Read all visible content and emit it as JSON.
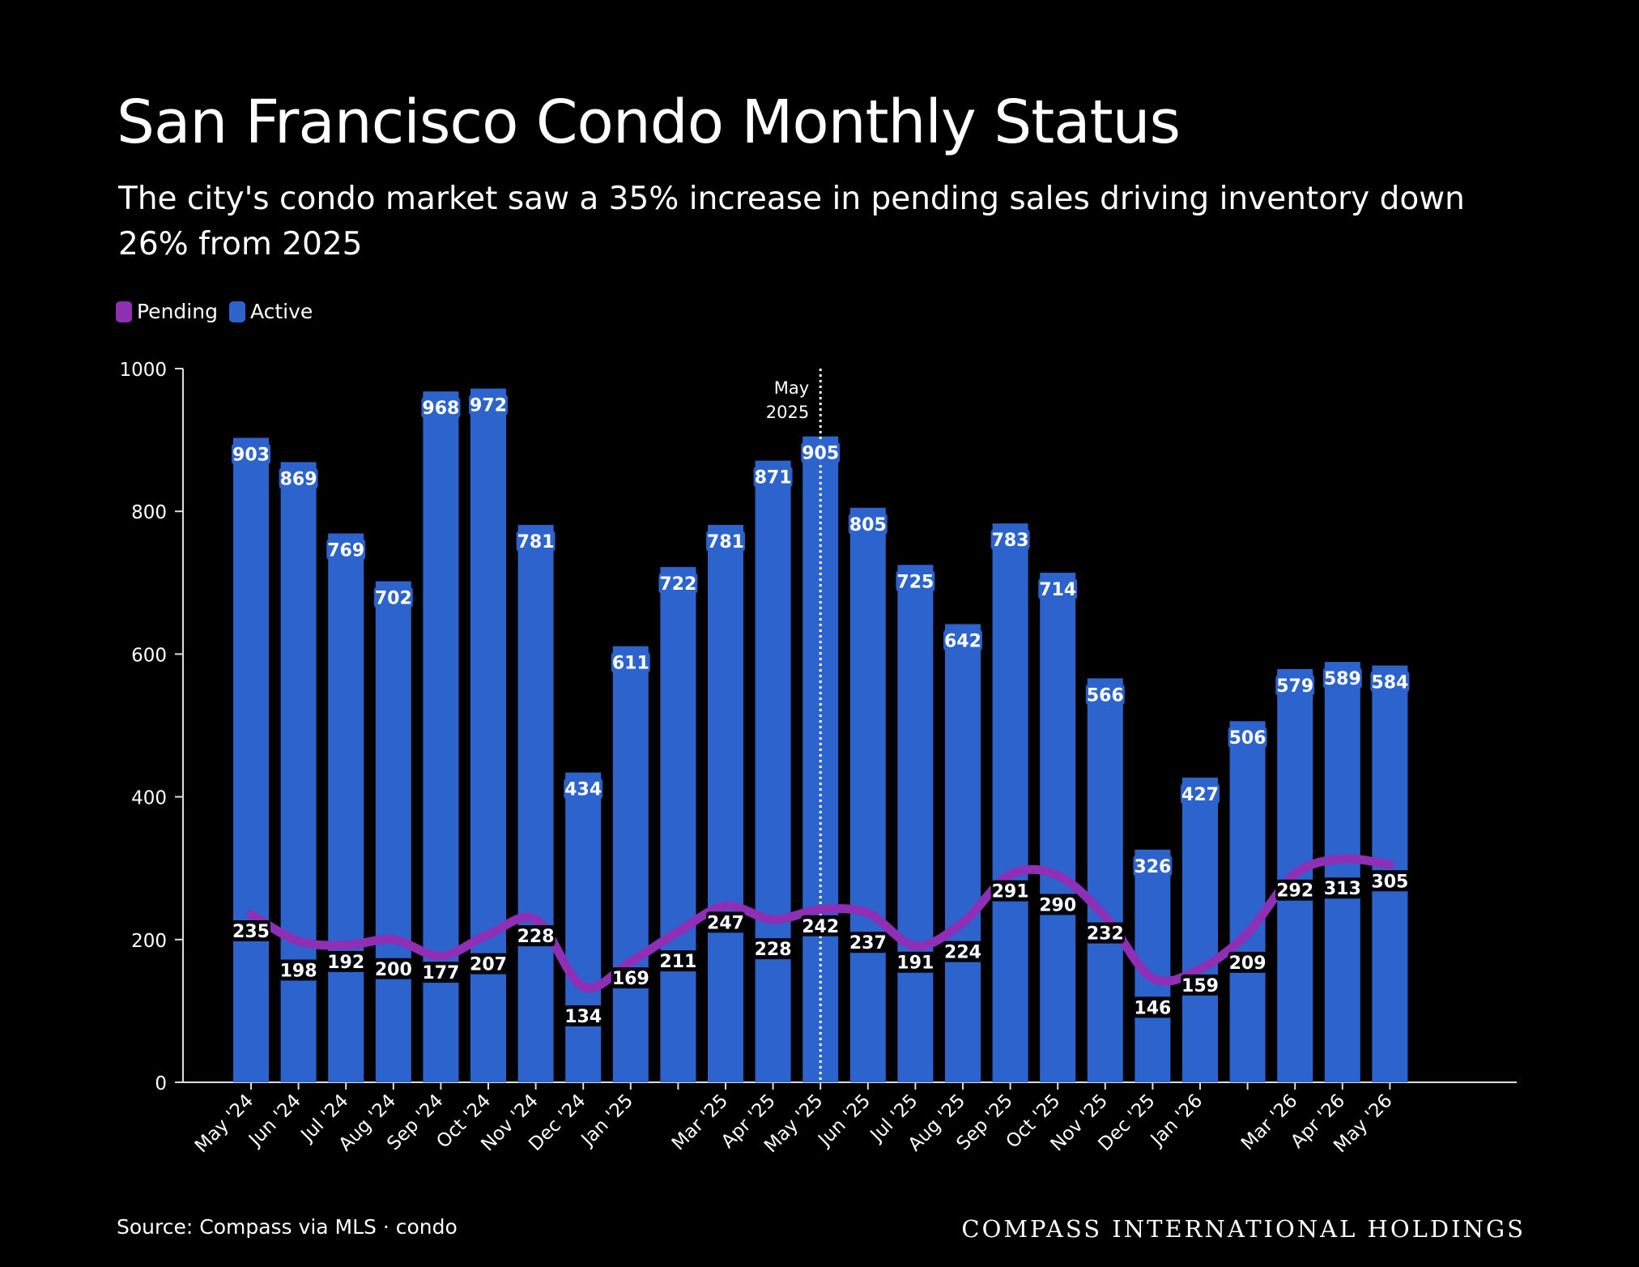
{
  "title": "San Francisco Condo Monthly Status",
  "subtitle": "The city's condo market saw a 35% increase in pending sales driving inventory down 26% from 2025",
  "legend": {
    "pending_label": "Pending",
    "active_label": "Active",
    "pending_color": "#8E2FB5",
    "active_color": "#2D63CC"
  },
  "source": "Source: Compass via MLS · condo",
  "brand": "COMPASS INTERNATIONAL HOLDINGS",
  "chart_data": {
    "type": "bar",
    "categories": [
      "May '24",
      "Jun '24",
      "Jul '24",
      "Aug '24",
      "Sep '24",
      "Oct '24",
      "Nov '24",
      "Dec '24",
      "Jan '25",
      "",
      "Mar '25",
      "Apr '25",
      "May '25",
      "Jun '25",
      "Jul '25",
      "Aug '25",
      "Sep '25",
      "Oct '25",
      "Nov '25",
      "Dec '25",
      "Jan '26",
      "",
      "Mar '26",
      "Apr '26",
      "May '26"
    ],
    "series": [
      {
        "name": "Active",
        "type": "bar",
        "color": "#2D63CC",
        "values": [
          903,
          869,
          769,
          702,
          968,
          972,
          781,
          434,
          611,
          722,
          781,
          871,
          905,
          805,
          725,
          642,
          783,
          714,
          566,
          326,
          427,
          506,
          579,
          589,
          584
        ]
      },
      {
        "name": "Pending",
        "type": "line",
        "color": "#8E2FB5",
        "values": [
          235,
          198,
          192,
          200,
          177,
          207,
          228,
          134,
          169,
          211,
          247,
          228,
          242,
          237,
          191,
          224,
          291,
          290,
          232,
          146,
          159,
          209,
          292,
          313,
          305
        ]
      }
    ],
    "yticks": [
      0,
      200,
      400,
      600,
      800,
      1000
    ],
    "ylim": [
      0,
      1000
    ],
    "grid": false,
    "legend_position": "top-left",
    "annotation": {
      "category": "May '25",
      "label_line1": "May",
      "label_line2": "2025"
    }
  }
}
